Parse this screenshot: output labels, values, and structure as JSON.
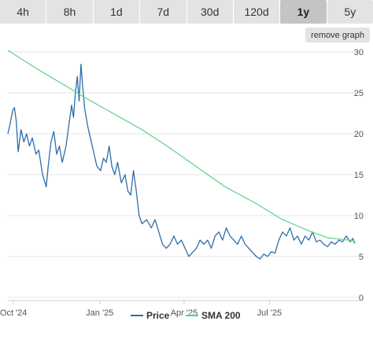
{
  "ranges": [
    "4h",
    "8h",
    "1d",
    "7d",
    "30d",
    "120d",
    "1y",
    "5y"
  ],
  "active_range": "1y",
  "remove_graph_label": "remove graph",
  "colors": {
    "price": "#2f6ea8",
    "sma": "#5fd08a",
    "grid": "#e6e6e6",
    "tab": "#e3e3e3",
    "tab_active": "#c4c4c4"
  },
  "chart_data": {
    "type": "line",
    "ylim": [
      0,
      30
    ],
    "y_ticks": [
      0,
      5,
      10,
      15,
      20,
      25,
      30
    ],
    "x_ticks": [
      {
        "date": "2024-10-01",
        "label": "Oct '24"
      },
      {
        "date": "2025-01-01",
        "label": "Jan '25"
      },
      {
        "date": "2025-04-01",
        "label": "Apr '25"
      },
      {
        "date": "2025-07-01",
        "label": "Jul '25"
      }
    ],
    "x_range": [
      "2024-09-25",
      "2025-10-01"
    ],
    "legend_position": "bottom-center",
    "grid": "horizontal",
    "series": [
      {
        "name": "Price",
        "color": "#2f6ea8",
        "points": [
          [
            "2024-09-25",
            20.0
          ],
          [
            "2024-09-27",
            21.0
          ],
          [
            "2024-09-30",
            22.8
          ],
          [
            "2024-10-02",
            23.2
          ],
          [
            "2024-10-04",
            21.5
          ],
          [
            "2024-10-06",
            17.8
          ],
          [
            "2024-10-09",
            20.5
          ],
          [
            "2024-10-12",
            19.0
          ],
          [
            "2024-10-15",
            20.0
          ],
          [
            "2024-10-18",
            18.5
          ],
          [
            "2024-10-21",
            19.5
          ],
          [
            "2024-10-25",
            17.5
          ],
          [
            "2024-10-28",
            18.0
          ],
          [
            "2024-11-01",
            15.0
          ],
          [
            "2024-11-05",
            13.5
          ],
          [
            "2024-11-07",
            16.0
          ],
          [
            "2024-11-10",
            19.0
          ],
          [
            "2024-11-13",
            20.3
          ],
          [
            "2024-11-16",
            17.5
          ],
          [
            "2024-11-19",
            18.5
          ],
          [
            "2024-11-22",
            16.5
          ],
          [
            "2024-11-26",
            18.5
          ],
          [
            "2024-11-29",
            21.0
          ],
          [
            "2024-12-02",
            23.5
          ],
          [
            "2024-12-04",
            22.0
          ],
          [
            "2024-12-06",
            25.0
          ],
          [
            "2024-12-08",
            27.0
          ],
          [
            "2024-12-10",
            24.0
          ],
          [
            "2024-12-12",
            28.5
          ],
          [
            "2024-12-14",
            25.5
          ],
          [
            "2024-12-16",
            23.0
          ],
          [
            "2024-12-19",
            21.0
          ],
          [
            "2024-12-22",
            19.5
          ],
          [
            "2024-12-26",
            17.5
          ],
          [
            "2024-12-29",
            16.0
          ],
          [
            "2025-01-02",
            15.5
          ],
          [
            "2025-01-05",
            17.0
          ],
          [
            "2025-01-08",
            16.5
          ],
          [
            "2025-01-11",
            18.5
          ],
          [
            "2025-01-14",
            16.0
          ],
          [
            "2025-01-17",
            15.0
          ],
          [
            "2025-01-20",
            16.5
          ],
          [
            "2025-01-24",
            14.0
          ],
          [
            "2025-01-28",
            15.0
          ],
          [
            "2025-01-31",
            13.0
          ],
          [
            "2025-02-03",
            12.5
          ],
          [
            "2025-02-06",
            15.5
          ],
          [
            "2025-02-09",
            13.0
          ],
          [
            "2025-02-12",
            10.0
          ],
          [
            "2025-02-15",
            9.0
          ],
          [
            "2025-02-20",
            9.5
          ],
          [
            "2025-02-25",
            8.5
          ],
          [
            "2025-03-01",
            9.5
          ],
          [
            "2025-03-05",
            8.0
          ],
          [
            "2025-03-09",
            6.5
          ],
          [
            "2025-03-13",
            6.0
          ],
          [
            "2025-03-17",
            6.5
          ],
          [
            "2025-03-21",
            7.5
          ],
          [
            "2025-03-25",
            6.5
          ],
          [
            "2025-03-29",
            7.0
          ],
          [
            "2025-04-02",
            6.0
          ],
          [
            "2025-04-06",
            5.0
          ],
          [
            "2025-04-10",
            5.5
          ],
          [
            "2025-04-14",
            6.0
          ],
          [
            "2025-04-18",
            7.0
          ],
          [
            "2025-04-22",
            6.5
          ],
          [
            "2025-04-26",
            7.0
          ],
          [
            "2025-04-30",
            6.0
          ],
          [
            "2025-05-04",
            7.5
          ],
          [
            "2025-05-08",
            8.0
          ],
          [
            "2025-05-12",
            7.0
          ],
          [
            "2025-05-16",
            8.5
          ],
          [
            "2025-05-20",
            7.5
          ],
          [
            "2025-05-24",
            7.0
          ],
          [
            "2025-05-28",
            6.5
          ],
          [
            "2025-06-01",
            7.5
          ],
          [
            "2025-06-05",
            6.5
          ],
          [
            "2025-06-09",
            6.0
          ],
          [
            "2025-06-13",
            5.5
          ],
          [
            "2025-06-17",
            5.0
          ],
          [
            "2025-06-21",
            4.7
          ],
          [
            "2025-06-25",
            5.3
          ],
          [
            "2025-06-29",
            5.0
          ],
          [
            "2025-07-03",
            5.6
          ],
          [
            "2025-07-07",
            5.4
          ],
          [
            "2025-07-11",
            7.0
          ],
          [
            "2025-07-15",
            8.0
          ],
          [
            "2025-07-19",
            7.5
          ],
          [
            "2025-07-23",
            8.5
          ],
          [
            "2025-07-27",
            7.0
          ],
          [
            "2025-07-31",
            7.5
          ],
          [
            "2025-08-04",
            6.5
          ],
          [
            "2025-08-08",
            7.5
          ],
          [
            "2025-08-12",
            7.0
          ],
          [
            "2025-08-16",
            8.0
          ],
          [
            "2025-08-20",
            6.8
          ],
          [
            "2025-08-24",
            7.0
          ],
          [
            "2025-08-28",
            6.5
          ],
          [
            "2025-09-01",
            6.2
          ],
          [
            "2025-09-05",
            6.8
          ],
          [
            "2025-09-09",
            6.5
          ],
          [
            "2025-09-13",
            7.0
          ],
          [
            "2025-09-17",
            6.8
          ],
          [
            "2025-09-21",
            7.5
          ],
          [
            "2025-09-25",
            6.8
          ],
          [
            "2025-09-28",
            7.2
          ],
          [
            "2025-09-30",
            6.6
          ]
        ]
      },
      {
        "name": "SMA 200",
        "color": "#5fd08a",
        "points": [
          [
            "2024-09-25",
            30.2
          ],
          [
            "2024-10-25",
            28.0
          ],
          [
            "2024-11-25",
            25.9
          ],
          [
            "2024-12-15",
            24.5
          ],
          [
            "2025-01-15",
            22.5
          ],
          [
            "2025-02-15",
            20.5
          ],
          [
            "2025-03-15",
            18.4
          ],
          [
            "2025-04-15",
            15.9
          ],
          [
            "2025-05-15",
            13.5
          ],
          [
            "2025-06-15",
            11.6
          ],
          [
            "2025-07-15",
            9.5
          ],
          [
            "2025-08-15",
            8.0
          ],
          [
            "2025-09-01",
            7.3
          ],
          [
            "2025-09-30",
            6.9
          ]
        ]
      }
    ]
  }
}
